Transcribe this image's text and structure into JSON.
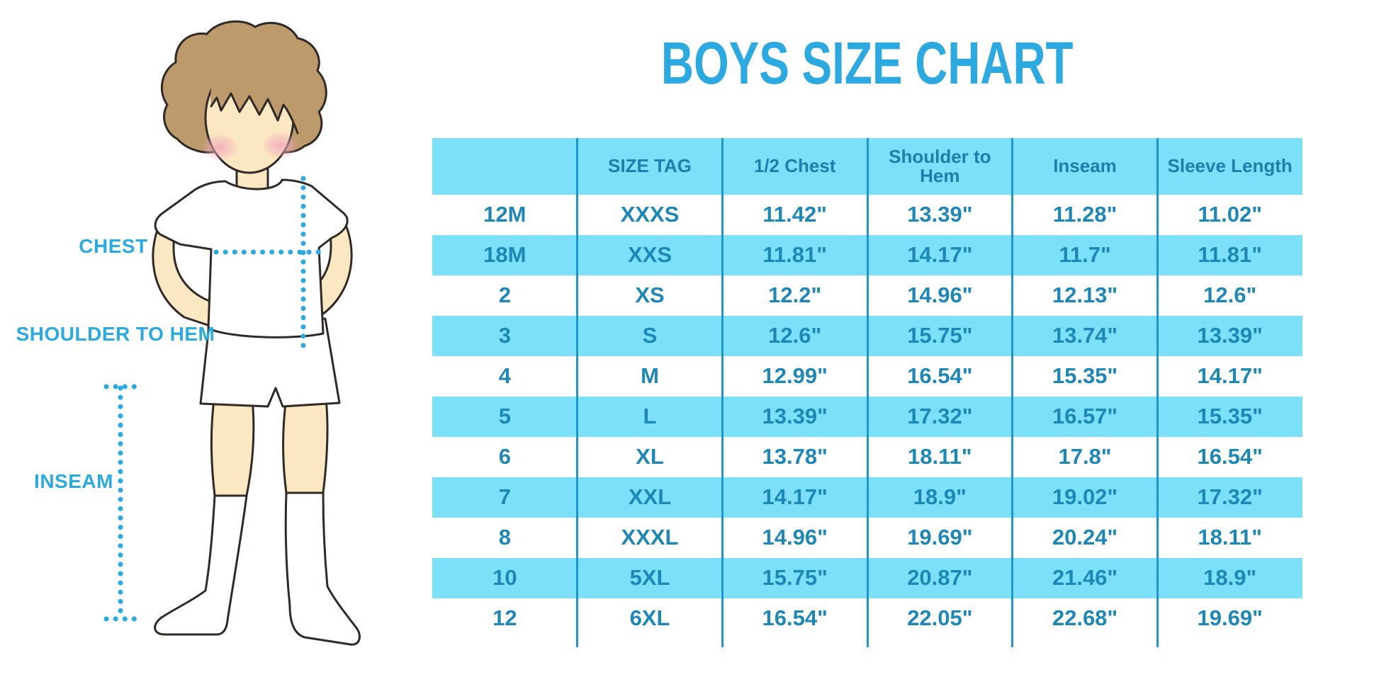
{
  "page_title": "BOYS SIZE CHART",
  "accent_colors": {
    "title_blue": "#2BA9E0",
    "label_and_dots_blue": "#29ABE2",
    "table_fill_cyan": "#7BE0F8",
    "table_text_blue": "#1D87B6",
    "column_divider_blue": "#1E96CC",
    "skin": "#FBE7C2",
    "hair": "#BC9A6C"
  },
  "figure": {
    "description": "Cartoon boy with brown hair, white t-shirt, white shorts and knee socks, with dotted measurement guide lines",
    "labels": {
      "chest": "CHEST",
      "shoulder_to_hem": "SHOULDER TO HEM",
      "inseam": "INSEAM"
    }
  },
  "chart_data": {
    "type": "table",
    "title": "BOYS SIZE CHART",
    "columns": [
      "",
      "SIZE TAG",
      "1/2 Chest",
      "Shoulder to Hem",
      "Inseam",
      "Sleeve Length"
    ],
    "rows": [
      [
        "12M",
        "XXXS",
        "11.42\"",
        "13.39\"",
        "11.28\"",
        "11.02\""
      ],
      [
        "18M",
        "XXS",
        "11.81\"",
        "14.17\"",
        "11.7\"",
        "11.81\""
      ],
      [
        "2",
        "XS",
        "12.2\"",
        "14.96\"",
        "12.13\"",
        "12.6\""
      ],
      [
        "3",
        "S",
        "12.6\"",
        "15.75\"",
        "13.74\"",
        "13.39\""
      ],
      [
        "4",
        "M",
        "12.99\"",
        "16.54\"",
        "15.35\"",
        "14.17\""
      ],
      [
        "5",
        "L",
        "13.39\"",
        "17.32\"",
        "16.57\"",
        "15.35\""
      ],
      [
        "6",
        "XL",
        "13.78\"",
        "18.11\"",
        "17.8\"",
        "16.54\""
      ],
      [
        "7",
        "XXL",
        "14.17\"",
        "18.9\"",
        "19.02\"",
        "17.32\""
      ],
      [
        "8",
        "XXXL",
        "14.96\"",
        "19.69\"",
        "20.24\"",
        "18.11\""
      ],
      [
        "10",
        "5XL",
        "15.75\"",
        "20.87\"",
        "21.46\"",
        "18.9\""
      ],
      [
        "12",
        "6XL",
        "16.54\"",
        "22.05\"",
        "22.68\"",
        "19.69\""
      ]
    ]
  }
}
